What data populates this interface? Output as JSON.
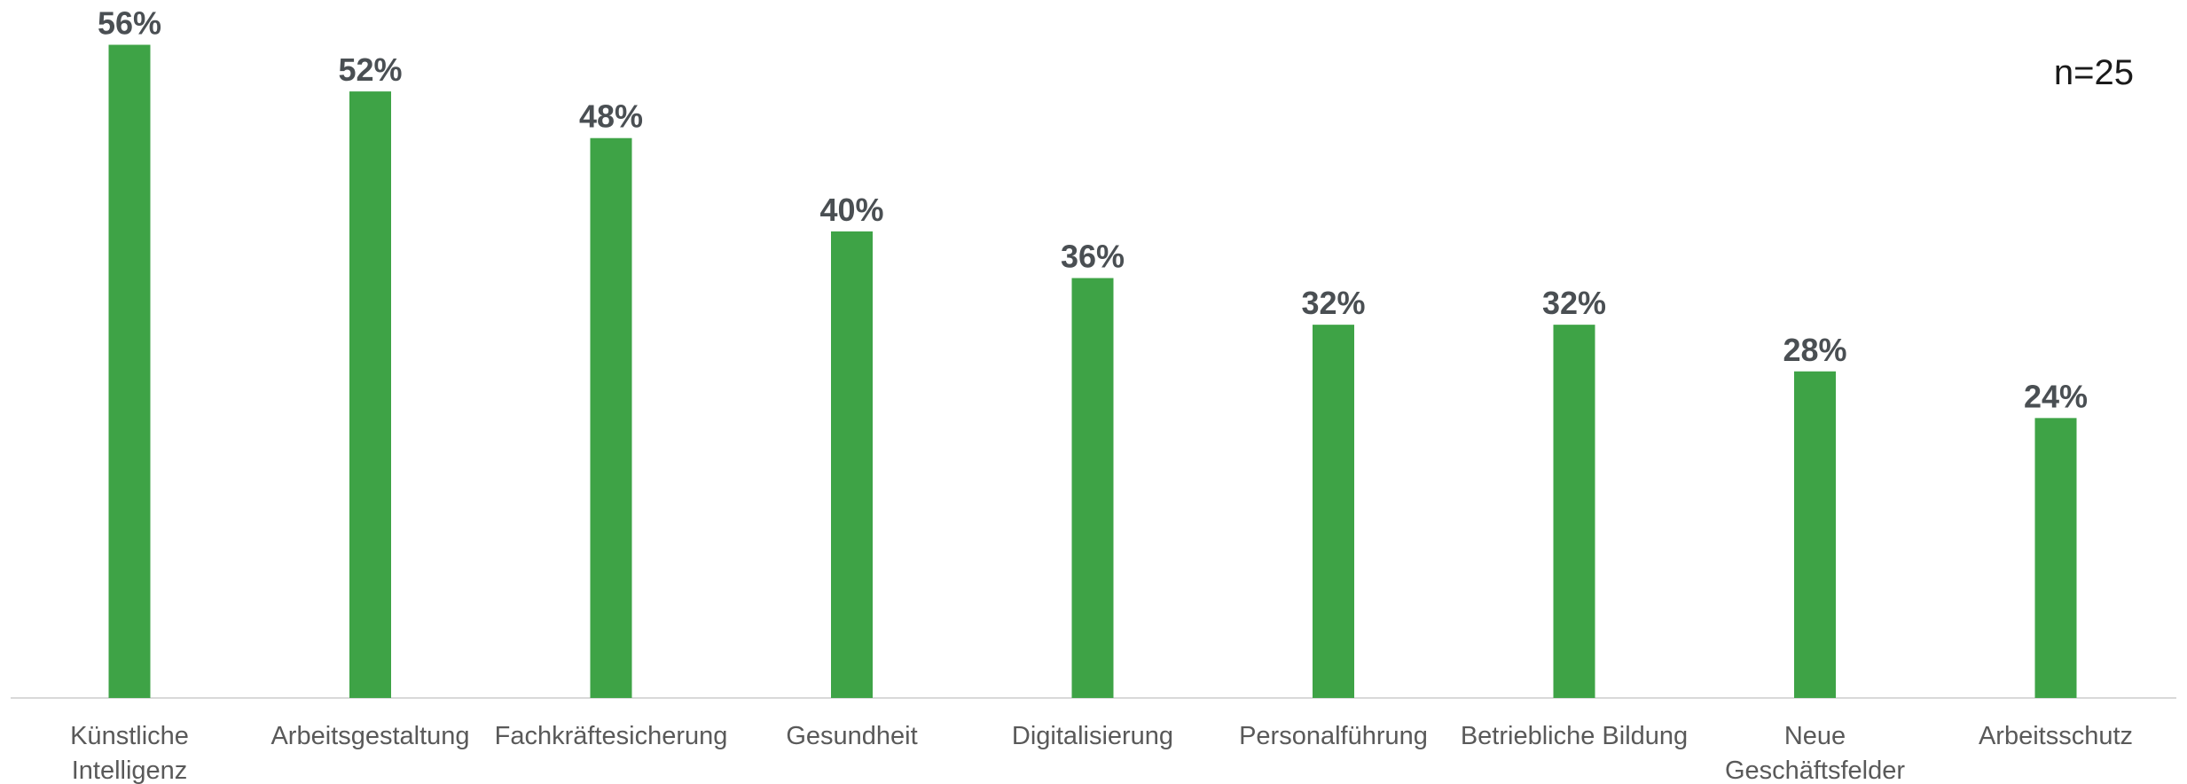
{
  "chart_data": {
    "type": "bar",
    "title": "",
    "xlabel": "",
    "ylabel": "",
    "annotation": "n=25",
    "categories": [
      [
        "Künstliche",
        "Intelligenz"
      ],
      [
        "Arbeitsgestaltung"
      ],
      [
        "Fachkräftesicherung"
      ],
      [
        "Gesundheit"
      ],
      [
        "Digitalisierung"
      ],
      [
        "Personalführung"
      ],
      [
        "Betriebliche Bildung"
      ],
      [
        "Neue",
        "Geschäftsfelder"
      ],
      [
        "Arbeitsschutz"
      ]
    ],
    "values": [
      56,
      52,
      48,
      40,
      36,
      32,
      32,
      28,
      24
    ],
    "value_labels": [
      "56%",
      "52%",
      "48%",
      "40%",
      "36%",
      "32%",
      "32%",
      "28%",
      "24%"
    ],
    "ylim": [
      0,
      60
    ],
    "grid": false,
    "legend": "none",
    "bar_color": "#3ea346",
    "axis_color": "#d9d9d9"
  }
}
